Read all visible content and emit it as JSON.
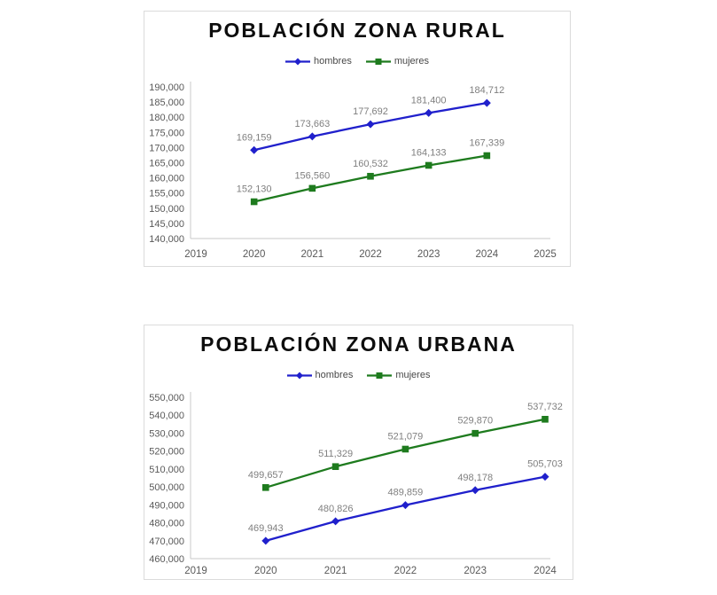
{
  "page": {
    "background_color": "#ffffff",
    "panel_border_color": "#dbdbdb"
  },
  "colors": {
    "hombres": "#2020cc",
    "mujeres": "#1e7b1e",
    "title_text": "#0d0d0d",
    "axis_text": "#595959",
    "data_label_text": "#7f7f7f",
    "axis_line": "#c8c8c8"
  },
  "charts": [
    {
      "chart_data": {
        "type": "line",
        "title": "POBLACIÓN ZONA RURAL",
        "x": [
          2020,
          2021,
          2022,
          2023,
          2024
        ],
        "series": [
          {
            "name": "hombres",
            "color": "#2020cc",
            "marker": "diamond",
            "values": [
              169159,
              173663,
              177692,
              181400,
              184712
            ]
          },
          {
            "name": "mujeres",
            "color": "#1e7b1e",
            "marker": "square",
            "values": [
              152130,
              156560,
              160532,
              164133,
              167339
            ]
          }
        ],
        "xlabel": "",
        "ylabel": "",
        "xlim": [
          2019,
          2025
        ],
        "xticks": [
          2019,
          2020,
          2021,
          2022,
          2023,
          2024,
          2025
        ],
        "ylim": [
          140000,
          190000
        ],
        "ytick_step": 5000,
        "yticks": [
          140000,
          145000,
          150000,
          155000,
          160000,
          165000,
          170000,
          175000,
          180000,
          185000,
          190000
        ],
        "grid": false,
        "legend_position": "top",
        "data_labels": true
      }
    },
    {
      "chart_data": {
        "type": "line",
        "title": "POBLACIÓN ZONA URBANA",
        "x": [
          2020,
          2021,
          2022,
          2023,
          2024
        ],
        "series": [
          {
            "name": "hombres",
            "color": "#2020cc",
            "marker": "diamond",
            "values": [
              469943,
              480826,
              489859,
              498178,
              505703
            ]
          },
          {
            "name": "mujeres",
            "color": "#1e7b1e",
            "marker": "square",
            "values": [
              499657,
              511329,
              521079,
              529870,
              537732
            ]
          }
        ],
        "xlabel": "",
        "ylabel": "",
        "xlim": [
          2019,
          2024
        ],
        "xticks": [
          2019,
          2020,
          2021,
          2022,
          2023,
          2024
        ],
        "ylim": [
          460000,
          550000
        ],
        "ytick_step": 10000,
        "yticks": [
          460000,
          470000,
          480000,
          490000,
          500000,
          510000,
          520000,
          530000,
          540000,
          550000
        ],
        "grid": false,
        "legend_position": "top",
        "data_labels": true
      }
    }
  ]
}
